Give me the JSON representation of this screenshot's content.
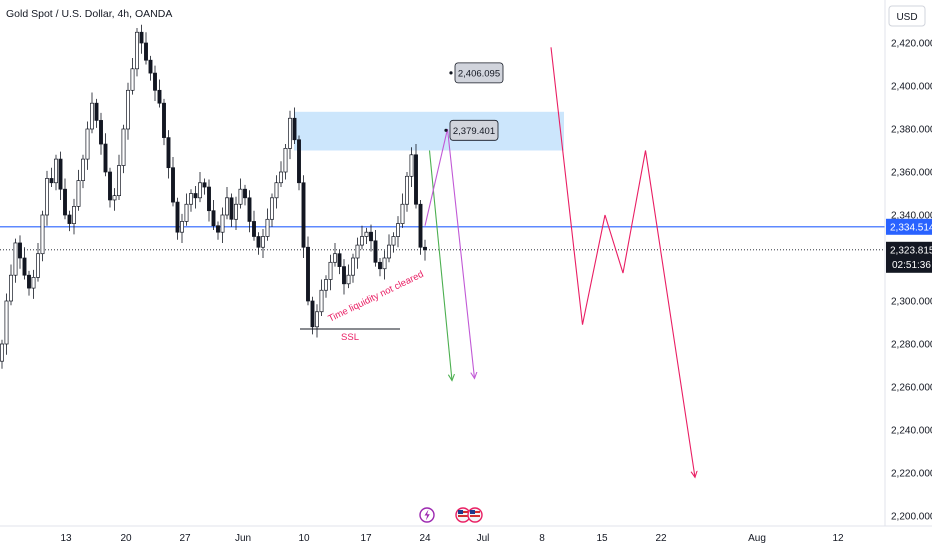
{
  "header": {
    "title": "Gold Spot / U.S. Dollar, 4h, OANDA"
  },
  "price_axis": {
    "currency_button": "USD",
    "ticks": [
      "2,420.000",
      "2,400.000",
      "2,380.000",
      "2,360.000",
      "2,340.000",
      "2,300.000",
      "2,280.000",
      "2,260.000",
      "2,240.000",
      "2,220.000",
      "2,200.000"
    ]
  },
  "time_axis": {
    "ticks": [
      "13",
      "20",
      "27",
      "Jun",
      "10",
      "17",
      "24",
      "Jul",
      "8",
      "15",
      "22",
      "Aug",
      "12"
    ]
  },
  "colors": {
    "candle": "#131722",
    "hline": "#2962ff",
    "zone": "#bbdefb",
    "green": "#4caf50",
    "violet": "#c159d6",
    "pink": "#e91e63",
    "ssl": "#e91e63"
  },
  "annotations": {
    "ssl_label": "SSL",
    "liquidity_text": "Time liquidity not cleared"
  },
  "chart_data": {
    "type": "candlestick",
    "symbol": "XAUUSD",
    "interval": "4h",
    "ylim": [
      2195,
      2435
    ],
    "horizontal_line": {
      "price": 2334.514,
      "label": "2,334.514"
    },
    "last_price": {
      "price": 2323.815,
      "label": "2,323.815",
      "countdown": "02:51:36"
    },
    "supply_zone": {
      "low": 2370,
      "high": 2388
    },
    "target_labels": [
      {
        "label": "2,379.401",
        "value": 2379.401
      },
      {
        "label": "2,406.095",
        "value": 2406.095
      }
    ],
    "ssl_level": 2287,
    "closes": [
      2280,
      2300,
      2312,
      2327,
      2320,
      2312,
      2306,
      2311,
      2322,
      2340,
      2357,
      2355,
      2366,
      2352,
      2340,
      2336,
      2344,
      2356,
      2366,
      2380,
      2392,
      2384,
      2373,
      2360,
      2347,
      2349,
      2363,
      2380,
      2398,
      2408,
      2425,
      2420,
      2412,
      2406,
      2398,
      2392,
      2376,
      2362,
      2346,
      2332,
      2337,
      2345,
      2350,
      2348,
      2355,
      2353,
      2342,
      2335,
      2332,
      2340,
      2348,
      2338,
      2345,
      2352,
      2348,
      2337,
      2330,
      2325,
      2330,
      2338,
      2348,
      2355,
      2360,
      2371,
      2385,
      2375,
      2355,
      2325,
      2300,
      2288,
      2295,
      2305,
      2310,
      2318,
      2322,
      2316,
      2308,
      2312,
      2320,
      2326,
      2330,
      2332,
      2328,
      2318,
      2315,
      2320,
      2326,
      2330,
      2336,
      2345,
      2358,
      2368,
      2345,
      2325,
      2323.8
    ],
    "projections": [
      {
        "name": "",
        "color": "green",
        "points": [
          [
            24,
            2370
          ],
          [
            29,
            2263
          ]
        ]
      },
      {
        "name": "",
        "color": "violet",
        "points": [
          [
            23,
            2335
          ],
          [
            28,
            2380
          ],
          [
            34,
            2264
          ]
        ]
      },
      {
        "name": "",
        "color": "pink",
        "points": [
          [
            51,
            2418
          ],
          [
            58,
            2289
          ],
          [
            63,
            2340
          ],
          [
            67,
            2313
          ],
          [
            72,
            2370
          ],
          [
            83,
            2218
          ]
        ]
      }
    ]
  }
}
